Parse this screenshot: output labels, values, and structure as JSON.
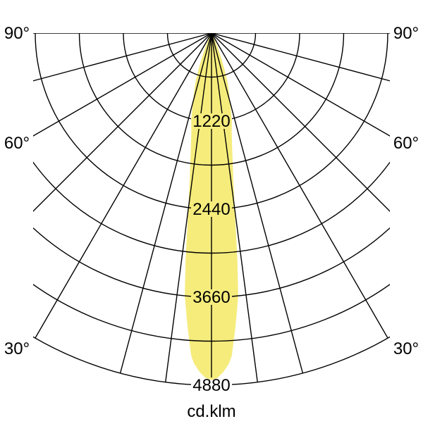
{
  "page": {
    "background": "#ffffff"
  },
  "chart_data": {
    "type": "polar",
    "subtype": "photometric-luminous-intensity-curve",
    "title": "",
    "units_label": "cd.klm",
    "angle_labels": [
      "90°",
      "60°",
      "30°"
    ],
    "angle_label_sides": "both-left-and-right",
    "ring_labels": [
      "1220",
      "2440",
      "3660",
      "4880"
    ],
    "ring_values": [
      1220,
      2440,
      3660,
      4880
    ],
    "ring_step_value": 610,
    "rings_total": 8,
    "radial_axis_max": 4880,
    "gamma_lines_deg": [
      0,
      7.5,
      15,
      30,
      45,
      60,
      75,
      90
    ],
    "grid_on": true,
    "line_color": "#000000",
    "beam_fill_color": "#f5ec7c",
    "beam": [
      [
        -30,
        10
      ],
      [
        -27,
        60
      ],
      [
        -25,
        130
      ],
      [
        -23.5,
        210
      ],
      [
        -21.5,
        350
      ],
      [
        -20,
        500
      ],
      [
        -18,
        730
      ],
      [
        -17,
        800
      ],
      [
        -15,
        1000
      ],
      [
        -13,
        1250
      ],
      [
        -11.5,
        1400
      ],
      [
        -10,
        1650
      ],
      [
        -8.5,
        2040
      ],
      [
        -7.5,
        2460
      ],
      [
        -6.5,
        3160
      ],
      [
        -5.8,
        3660
      ],
      [
        -5,
        3950
      ],
      [
        -4.5,
        4140
      ],
      [
        -3.6,
        4480
      ],
      [
        -3,
        4590
      ],
      [
        -2,
        4700
      ],
      [
        -1,
        4780
      ],
      [
        0,
        4810
      ],
      [
        1,
        4780
      ],
      [
        2,
        4700
      ],
      [
        3,
        4590
      ],
      [
        3.6,
        4480
      ],
      [
        4.5,
        4140
      ],
      [
        5,
        3950
      ],
      [
        5.8,
        3660
      ],
      [
        6.5,
        3160
      ],
      [
        7.5,
        2460
      ],
      [
        8.5,
        2040
      ],
      [
        10,
        1650
      ],
      [
        11.5,
        1400
      ],
      [
        13,
        1250
      ],
      [
        15,
        1000
      ],
      [
        17,
        800
      ],
      [
        18,
        730
      ],
      [
        20,
        500
      ],
      [
        21.5,
        350
      ],
      [
        23.5,
        210
      ],
      [
        25,
        130
      ],
      [
        27,
        60
      ],
      [
        30,
        10
      ]
    ]
  }
}
